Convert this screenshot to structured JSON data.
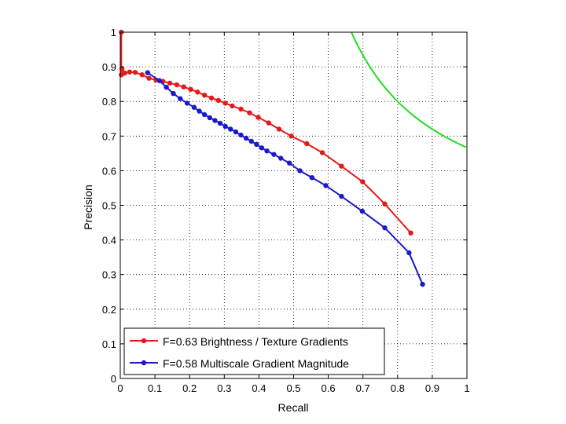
{
  "chart_data": {
    "type": "line",
    "title": "",
    "xlabel": "Recall",
    "ylabel": "Precision",
    "xlim": [
      0,
      1
    ],
    "ylim": [
      0,
      1
    ],
    "grid": true,
    "grid_style": "dotted",
    "x_ticks": [
      "0",
      "0.1",
      "0.2",
      "0.3",
      "0.4",
      "0.5",
      "0.6",
      "0.7",
      "0.8",
      "0.9",
      "1"
    ],
    "y_ticks": [
      "0",
      "0.1",
      "0.2",
      "0.3",
      "0.4",
      "0.5",
      "0.6",
      "0.7",
      "0.8",
      "0.9",
      "1"
    ],
    "legend_position": "bottom-left",
    "series": [
      {
        "name": "F=0.63 Brightness / Texture Gradients",
        "color": "#e41a1a",
        "marker": "circle",
        "x": [
          0.003,
          0.003,
          0.005,
          0.013,
          0.027,
          0.043,
          0.063,
          0.083,
          0.103,
          0.123,
          0.143,
          0.163,
          0.183,
          0.203,
          0.223,
          0.243,
          0.263,
          0.283,
          0.303,
          0.323,
          0.348,
          0.373,
          0.398,
          0.428,
          0.458,
          0.493,
          0.538,
          0.583,
          0.638,
          0.699,
          0.763,
          0.838
        ],
        "y": [
          1.0,
          0.877,
          0.895,
          0.882,
          0.885,
          0.884,
          0.877,
          0.867,
          0.862,
          0.858,
          0.853,
          0.848,
          0.842,
          0.835,
          0.827,
          0.818,
          0.81,
          0.803,
          0.795,
          0.787,
          0.778,
          0.767,
          0.754,
          0.738,
          0.72,
          0.7,
          0.678,
          0.652,
          0.613,
          0.568,
          0.504,
          0.42
        ]
      },
      {
        "name": "F=0.58 Multiscale Gradient Magnitude",
        "color": "#1a1acc",
        "marker": "circle",
        "x": [
          0.079,
          0.113,
          0.133,
          0.153,
          0.173,
          0.193,
          0.213,
          0.228,
          0.243,
          0.258,
          0.273,
          0.288,
          0.303,
          0.318,
          0.333,
          0.348,
          0.363,
          0.378,
          0.393,
          0.408,
          0.423,
          0.443,
          0.463,
          0.488,
          0.518,
          0.553,
          0.593,
          0.638,
          0.698,
          0.763,
          0.833,
          0.872
        ],
        "y": [
          0.883,
          0.86,
          0.841,
          0.823,
          0.808,
          0.795,
          0.783,
          0.772,
          0.762,
          0.753,
          0.745,
          0.737,
          0.728,
          0.72,
          0.712,
          0.703,
          0.694,
          0.685,
          0.676,
          0.666,
          0.657,
          0.647,
          0.636,
          0.622,
          0.6,
          0.58,
          0.557,
          0.526,
          0.483,
          0.435,
          0.363,
          0.272
        ]
      }
    ],
    "iso_f_curve": {
      "f": 0.8,
      "color": "#22dd22"
    }
  }
}
